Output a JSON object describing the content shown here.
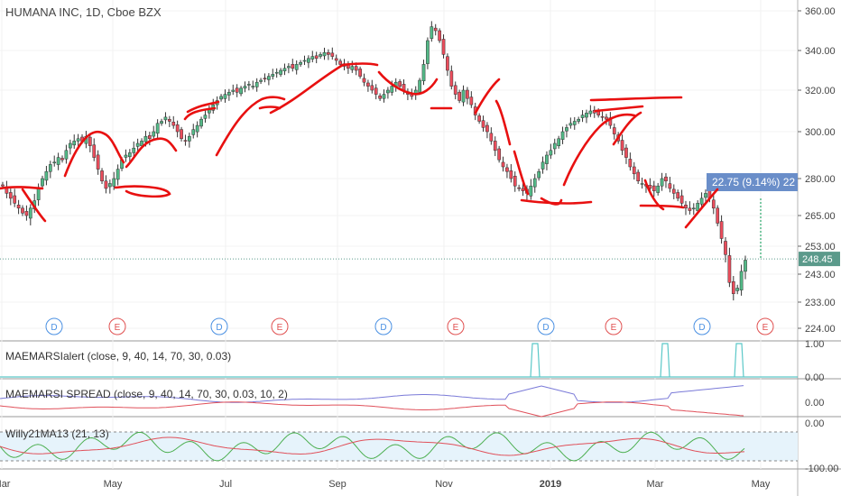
{
  "header": {
    "title": "HUMANA INC, 1D, Cboe BZX"
  },
  "chart_data": {
    "type": "candlestick",
    "price_axis": {
      "ticks": [
        "360.00",
        "340.00",
        "320.00",
        "300.00",
        "280.00",
        "265.00",
        "253.00",
        "243.00",
        "233.00",
        "224.00"
      ]
    },
    "x_axis": {
      "ticks": [
        "Mar",
        "May",
        "Jul",
        "Sep",
        "Nov",
        "2019",
        "Mar",
        "May"
      ]
    },
    "last_price": "248.45",
    "measure_label": "22.75 (9.14%) 22",
    "events": [
      "D",
      "E",
      "D",
      "E",
      "D",
      "E",
      "D",
      "E",
      "D",
      "E"
    ],
    "candles_close": [
      277,
      274,
      272,
      270,
      268,
      266,
      265,
      268,
      271,
      276,
      280,
      283,
      286,
      287,
      289,
      288,
      292,
      295,
      296,
      297,
      296,
      298,
      294,
      289,
      284,
      279,
      276,
      278,
      280,
      284,
      288,
      290,
      291,
      293,
      295,
      296,
      298,
      297,
      300,
      304,
      305,
      307,
      305,
      303,
      300,
      297,
      296,
      298,
      301,
      303,
      306,
      308,
      311,
      313,
      315,
      317,
      318,
      319,
      320,
      319,
      321,
      322,
      323,
      322,
      324,
      325,
      326,
      327,
      328,
      329,
      330,
      331,
      332,
      331,
      333,
      334,
      335,
      336,
      337,
      336,
      338,
      339,
      338,
      337,
      335,
      333,
      332,
      331,
      332,
      330,
      327,
      324,
      322,
      320,
      318,
      316,
      318,
      320,
      322,
      324,
      322,
      320,
      318,
      317,
      320,
      325,
      333,
      345,
      352,
      350,
      345,
      338,
      330,
      322,
      318,
      315,
      320,
      316,
      313,
      308,
      305,
      302,
      300,
      296,
      292,
      288,
      285,
      283,
      280,
      277,
      276,
      275,
      274,
      277,
      280,
      283,
      287,
      290,
      292,
      295,
      297,
      300,
      302,
      304,
      305,
      306,
      308,
      309,
      310,
      309,
      308,
      307,
      306,
      303,
      299,
      296,
      292,
      289,
      285,
      282,
      279,
      278,
      277,
      276,
      275,
      277,
      280,
      279,
      276,
      274,
      272,
      270,
      268,
      267,
      268,
      270,
      272,
      274,
      272,
      268,
      262,
      256,
      250,
      240,
      236,
      238,
      244,
      248
    ],
    "panels": [
      {
        "label": "MAEMARSIalert (close, 9, 40, 14, 70, 30, 0.03)",
        "ticks": [
          "1.00",
          "0.00"
        ]
      },
      {
        "label": "MAEMARSI SPREAD (close, 9, 40, 14, 70, 30, 0.03, 10, 2)",
        "ticks": [
          "0.00"
        ]
      },
      {
        "label": "Willy21MA13 (21, 13)",
        "ticks": [
          "0.00",
          "-100.00"
        ]
      }
    ],
    "colors": {
      "up": "#53b987",
      "down": "#eb4d5c",
      "annot": "#e81010",
      "blue": "#7a7ad8",
      "price": "#5b9a8b",
      "measure": "#6a8ec9"
    }
  }
}
